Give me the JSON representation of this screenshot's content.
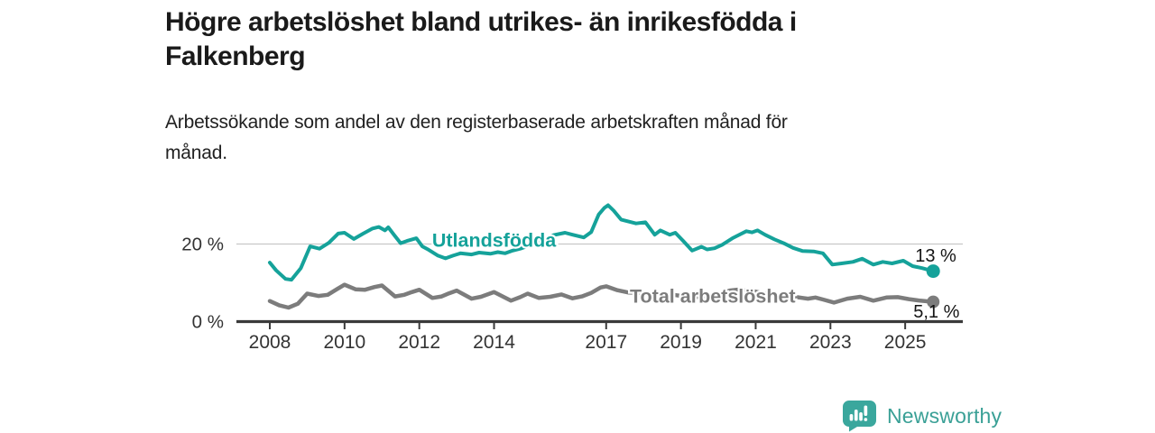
{
  "header": {
    "title": "Högre arbetslöshet bland utrikes- än inrikesfödda i Falkenberg",
    "title_lines": [
      "Högre arbetslöshet bland utrikes- än inrikesfödda i",
      "Falkenberg"
    ],
    "subtitle": "Arbetssökande som andel av den registerbaserade arbetskraften månad för månad.",
    "subtitle_lines": [
      "Arbetssökande som andel av den registerbaserade arbetskraften månad för",
      "månad."
    ]
  },
  "footer": {
    "brand": "Newsworthy",
    "logo_icon": "bar-chart-speech-bubble-icon"
  },
  "colors": {
    "foreign_born_line": "#15a29a",
    "total_line": "#7c7c7c",
    "axis": "#3a3a3a",
    "grid": "#c8c8c8",
    "axis_text": "#333333",
    "value_text": "#141414",
    "brand_teal": "#3aa79d",
    "title_text": "#1a1a1a"
  },
  "chart_data": {
    "type": "line",
    "title": "Högre arbetslöshet bland utrikes- än inrikesfödda i Falkenberg",
    "subtitle": "Arbetssökande som andel av den registerbaserade arbetskraften månad för månad.",
    "xlabel": "",
    "ylabel": "",
    "x_axis": {
      "ticks": [
        "2008",
        "2010",
        "2012",
        "2014",
        "2017",
        "2019",
        "2021",
        "2023",
        "2025"
      ],
      "range": [
        2008,
        2025.75
      ]
    },
    "y_axis": {
      "ticks": [
        {
          "value": 0,
          "label": "0 %"
        },
        {
          "value": 20,
          "label": "20 %"
        }
      ],
      "range": [
        0,
        32
      ],
      "grid_at": [
        20
      ]
    },
    "legend_position": "inline-labels-on-lines",
    "series": [
      {
        "name": "Utlandsfödda",
        "color": "#15a29a",
        "end_label": "13 %",
        "end_value": 13,
        "label_at": [
          2014.0,
          21.0
        ],
        "points": [
          [
            2008.0,
            15.2
          ],
          [
            2008.17,
            13.2
          ],
          [
            2008.42,
            11.0
          ],
          [
            2008.58,
            10.8
          ],
          [
            2008.83,
            13.8
          ],
          [
            2009.08,
            19.4
          ],
          [
            2009.33,
            18.8
          ],
          [
            2009.58,
            20.3
          ],
          [
            2009.83,
            22.7
          ],
          [
            2010.0,
            22.9
          ],
          [
            2010.25,
            21.3
          ],
          [
            2010.5,
            22.7
          ],
          [
            2010.75,
            24.0
          ],
          [
            2010.92,
            24.4
          ],
          [
            2011.08,
            23.5
          ],
          [
            2011.17,
            24.3
          ],
          [
            2011.33,
            22.3
          ],
          [
            2011.5,
            20.2
          ],
          [
            2011.67,
            20.8
          ],
          [
            2011.92,
            21.5
          ],
          [
            2012.08,
            19.4
          ],
          [
            2012.25,
            18.5
          ],
          [
            2012.5,
            17.0
          ],
          [
            2012.7,
            16.3
          ],
          [
            2012.9,
            17.0
          ],
          [
            2013.1,
            17.6
          ],
          [
            2013.4,
            17.3
          ],
          [
            2013.6,
            17.8
          ],
          [
            2013.9,
            17.5
          ],
          [
            2014.1,
            17.9
          ],
          [
            2014.3,
            17.6
          ],
          [
            2014.5,
            18.3
          ],
          [
            2014.7,
            18.8
          ],
          [
            2015.0,
            19.8
          ],
          [
            2015.3,
            21.0
          ],
          [
            2015.6,
            22.3
          ],
          [
            2015.9,
            22.9
          ],
          [
            2016.1,
            22.4
          ],
          [
            2016.4,
            21.7
          ],
          [
            2016.6,
            23.1
          ],
          [
            2016.8,
            27.6
          ],
          [
            2016.95,
            29.3
          ],
          [
            2017.05,
            30.0
          ],
          [
            2017.2,
            28.6
          ],
          [
            2017.4,
            26.3
          ],
          [
            2017.6,
            25.8
          ],
          [
            2017.8,
            25.3
          ],
          [
            2018.05,
            25.6
          ],
          [
            2018.3,
            22.4
          ],
          [
            2018.45,
            23.5
          ],
          [
            2018.7,
            22.4
          ],
          [
            2018.85,
            22.9
          ],
          [
            2019.05,
            20.9
          ],
          [
            2019.3,
            18.3
          ],
          [
            2019.55,
            19.3
          ],
          [
            2019.7,
            18.6
          ],
          [
            2019.9,
            18.9
          ],
          [
            2020.1,
            19.8
          ],
          [
            2020.4,
            21.6
          ],
          [
            2020.75,
            23.3
          ],
          [
            2020.9,
            23.0
          ],
          [
            2021.05,
            23.5
          ],
          [
            2021.25,
            22.4
          ],
          [
            2021.5,
            21.2
          ],
          [
            2021.75,
            20.2
          ],
          [
            2022.0,
            19.0
          ],
          [
            2022.25,
            18.2
          ],
          [
            2022.55,
            18.1
          ],
          [
            2022.8,
            17.6
          ],
          [
            2023.05,
            14.7
          ],
          [
            2023.3,
            15.0
          ],
          [
            2023.6,
            15.4
          ],
          [
            2023.85,
            16.2
          ],
          [
            2024.15,
            14.7
          ],
          [
            2024.4,
            15.4
          ],
          [
            2024.65,
            15.0
          ],
          [
            2024.95,
            15.7
          ],
          [
            2025.2,
            14.3
          ],
          [
            2025.45,
            13.8
          ],
          [
            2025.75,
            13.0
          ]
        ]
      },
      {
        "name": "Total arbetslöshet",
        "color": "#7c7c7c",
        "end_label": "5,1 %",
        "end_value": 5.1,
        "label_at": [
          2019.85,
          6.6
        ],
        "points": [
          [
            2008.0,
            5.3
          ],
          [
            2008.25,
            4.2
          ],
          [
            2008.5,
            3.6
          ],
          [
            2008.75,
            4.6
          ],
          [
            2009.0,
            7.2
          ],
          [
            2009.3,
            6.6
          ],
          [
            2009.55,
            6.9
          ],
          [
            2009.8,
            8.4
          ],
          [
            2010.0,
            9.5
          ],
          [
            2010.3,
            8.3
          ],
          [
            2010.55,
            8.2
          ],
          [
            2010.8,
            8.9
          ],
          [
            2011.0,
            9.3
          ],
          [
            2011.35,
            6.5
          ],
          [
            2011.6,
            6.9
          ],
          [
            2011.8,
            7.6
          ],
          [
            2012.0,
            8.2
          ],
          [
            2012.35,
            6.1
          ],
          [
            2012.6,
            6.5
          ],
          [
            2012.8,
            7.3
          ],
          [
            2013.0,
            8.0
          ],
          [
            2013.4,
            5.9
          ],
          [
            2013.65,
            6.4
          ],
          [
            2013.85,
            7.1
          ],
          [
            2014.0,
            7.6
          ],
          [
            2014.45,
            5.4
          ],
          [
            2014.7,
            6.3
          ],
          [
            2014.9,
            7.2
          ],
          [
            2015.2,
            6.1
          ],
          [
            2015.5,
            6.4
          ],
          [
            2015.8,
            7.0
          ],
          [
            2016.1,
            6.0
          ],
          [
            2016.35,
            6.5
          ],
          [
            2016.6,
            7.4
          ],
          [
            2016.85,
            8.8
          ],
          [
            2017.0,
            9.1
          ],
          [
            2017.3,
            8.1
          ],
          [
            2017.6,
            7.5
          ],
          [
            2017.9,
            7.4
          ],
          [
            2018.2,
            7.0
          ],
          [
            2018.5,
            6.7
          ],
          [
            2018.8,
            6.9
          ],
          [
            2019.1,
            6.5
          ],
          [
            2019.4,
            6.3
          ],
          [
            2019.7,
            6.6
          ],
          [
            2020.0,
            6.9
          ],
          [
            2020.3,
            8.0
          ],
          [
            2020.6,
            8.3
          ],
          [
            2020.9,
            7.9
          ],
          [
            2021.2,
            7.3
          ],
          [
            2021.5,
            6.9
          ],
          [
            2021.8,
            6.5
          ],
          [
            2022.1,
            6.3
          ],
          [
            2022.4,
            5.9
          ],
          [
            2022.6,
            6.2
          ],
          [
            2022.8,
            5.7
          ],
          [
            2023.1,
            4.9
          ],
          [
            2023.45,
            5.9
          ],
          [
            2023.8,
            6.4
          ],
          [
            2024.15,
            5.4
          ],
          [
            2024.5,
            6.2
          ],
          [
            2024.8,
            6.3
          ],
          [
            2025.1,
            5.8
          ],
          [
            2025.4,
            5.4
          ],
          [
            2025.75,
            5.1
          ]
        ]
      }
    ]
  }
}
